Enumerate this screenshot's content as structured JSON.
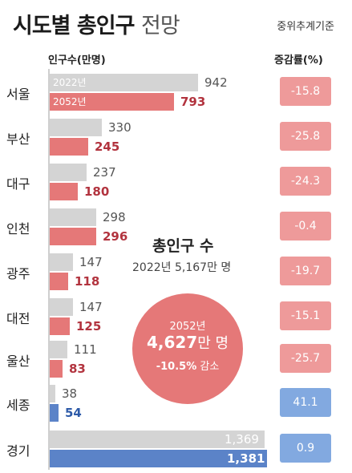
{
  "header": {
    "title_bold": "시도별 총인구",
    "title_light": "전망",
    "basis": "중위추계기준"
  },
  "columns": {
    "population_label": "인구수(만명)",
    "change_label": "증감률(%)"
  },
  "year_labels": {
    "y2022": "2022년",
    "y2052": "2052년"
  },
  "total": {
    "title": "총인구 수",
    "y2022_year": "2022년",
    "y2022_value": "5,167",
    "y2022_unit": "만 명",
    "y2052_year": "2052년",
    "y2052_value": "4,627",
    "y2052_unit": "만 명",
    "change_value": "-10.5%",
    "change_word": "감소"
  },
  "colors": {
    "bar_2022": "#d4d4d4",
    "bar_2052_decrease": "#e57878",
    "bar_2052_increase": "#5b83c8",
    "pct_decrease": "#ee9a9a",
    "pct_increase": "#82a9e0"
  },
  "chart_data": {
    "type": "bar",
    "orientation": "horizontal",
    "title": "시도별 총인구 전망",
    "xlabel": "인구수(만명)",
    "categories": [
      "서울",
      "부산",
      "대구",
      "인천",
      "광주",
      "대전",
      "울산",
      "세종",
      "경기"
    ],
    "series": [
      {
        "name": "2022년",
        "values": [
          942,
          330,
          237,
          298,
          147,
          147,
          111,
          38,
          1369
        ]
      },
      {
        "name": "2052년",
        "values": [
          793,
          245,
          180,
          296,
          118,
          125,
          83,
          54,
          1381
        ]
      }
    ],
    "change_pct": [
      -15.8,
      -25.8,
      -24.3,
      -0.4,
      -19.7,
      -15.1,
      -25.7,
      41.1,
      0.9
    ],
    "change_labels": [
      "-15.8",
      "-25.8",
      "-24.3",
      "-0.4",
      "-19.7",
      "-15.1",
      "-25.7",
      "41.1",
      "0.9"
    ],
    "labels_2022": [
      "942",
      "330",
      "237",
      "298",
      "147",
      "147",
      "111",
      "38",
      "1,369"
    ],
    "labels_2052": [
      "793",
      "245",
      "180",
      "296",
      "118",
      "125",
      "83",
      "54",
      "1,381"
    ]
  }
}
